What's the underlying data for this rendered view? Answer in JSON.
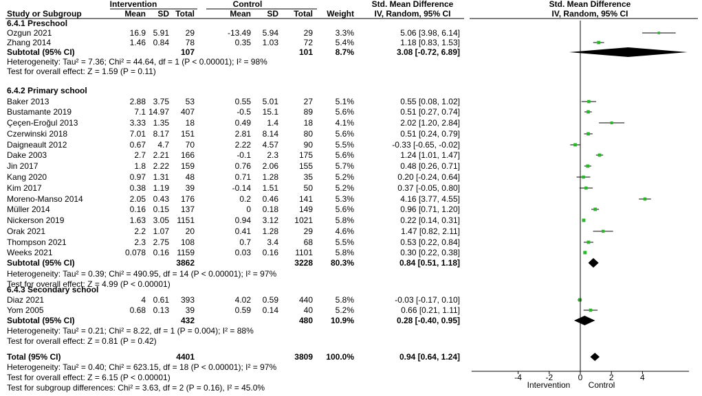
{
  "headers": {
    "study": "Study or Subgroup",
    "intervention": "Intervention",
    "control": "Control",
    "mean": "Mean",
    "sd": "SD",
    "total": "Total",
    "weight": "Weight",
    "smd": "Std. Mean Difference",
    "model": "IV, Random, 95% CI"
  },
  "plot": {
    "title": "Std. Mean Difference",
    "model": "IV, Random, 95% CI",
    "axis_ticks": [
      -4,
      -2,
      0,
      2,
      4
    ],
    "axis_tick_labels": [
      "-4",
      "-2",
      "0",
      "2",
      "4"
    ],
    "axis_range": [
      -7,
      7
    ],
    "left_label": "Intervention",
    "right_label": "Control",
    "square_color": "#2db52d",
    "diamond_color": "#000000"
  },
  "chart_data": {
    "type": "forest",
    "xlim": [
      -7,
      7
    ],
    "groups": [
      {
        "title": "6.4.1 Preschool",
        "studies": [
          {
            "study": "Ozgun 2021",
            "i_mean": "16.9",
            "i_sd": "5.91",
            "i_total": "29",
            "c_mean": "-13.49",
            "c_sd": "5.94",
            "c_total": "29",
            "weight": "3.3%",
            "ci_text": "5.06 [3.98, 6.14]",
            "est": 5.06,
            "lo": 3.98,
            "hi": 6.14
          },
          {
            "study": "Zhang 2014",
            "i_mean": "1.46",
            "i_sd": "0.84",
            "i_total": "78",
            "c_mean": "0.35",
            "c_sd": "1.03",
            "c_total": "72",
            "weight": "5.4%",
            "ci_text": "1.18 [0.83, 1.53]",
            "est": 1.18,
            "lo": 0.83,
            "hi": 1.53
          }
        ],
        "subtotal": {
          "label": "Subtotal (95% CI)",
          "i_total": "107",
          "c_total": "101",
          "weight": "8.7%",
          "ci_text": "3.08 [-0.72, 6.89]",
          "est": 3.08,
          "lo": -0.72,
          "hi": 6.89
        },
        "heterogeneity": "Heterogeneity: Tau² = 7.36; Chi² = 44.64, df = 1 (P < 0.00001); I² = 98%",
        "overall": "Test for overall effect: Z = 1.59 (P = 0.11)"
      },
      {
        "title": "6.4.2 Primary school",
        "studies": [
          {
            "study": "Baker 2013",
            "i_mean": "2.88",
            "i_sd": "3.75",
            "i_total": "53",
            "c_mean": "0.55",
            "c_sd": "5.01",
            "c_total": "27",
            "weight": "5.1%",
            "ci_text": "0.55 [0.08, 1.02]",
            "est": 0.55,
            "lo": 0.08,
            "hi": 1.02
          },
          {
            "study": "Bustamante 2019",
            "i_mean": "7.1",
            "i_sd": "14.97",
            "i_total": "407",
            "c_mean": "-0.5",
            "c_sd": "15.1",
            "c_total": "89",
            "weight": "5.6%",
            "ci_text": "0.51 [0.27, 0.74]",
            "est": 0.51,
            "lo": 0.27,
            "hi": 0.74
          },
          {
            "study": "Çeçen-Eroğul 2013",
            "i_mean": "3.33",
            "i_sd": "1.35",
            "i_total": "18",
            "c_mean": "0.49",
            "c_sd": "1.4",
            "c_total": "18",
            "weight": "4.1%",
            "ci_text": "2.02 [1.20, 2.84]",
            "est": 2.02,
            "lo": 1.2,
            "hi": 2.84
          },
          {
            "study": "Czerwinski 2018",
            "i_mean": "7.01",
            "i_sd": "8.17",
            "i_total": "151",
            "c_mean": "2.81",
            "c_sd": "8.14",
            "c_total": "80",
            "weight": "5.6%",
            "ci_text": "0.51 [0.24, 0.79]",
            "est": 0.51,
            "lo": 0.24,
            "hi": 0.79
          },
          {
            "study": "Daigneault 2012",
            "i_mean": "0.67",
            "i_sd": "4.7",
            "i_total": "70",
            "c_mean": "2.22",
            "c_sd": "4.57",
            "c_total": "90",
            "weight": "5.5%",
            "ci_text": "-0.33 [-0.65, -0.02]",
            "est": -0.33,
            "lo": -0.65,
            "hi": -0.02
          },
          {
            "study": "Dake 2003",
            "i_mean": "2.7",
            "i_sd": "2.21",
            "i_total": "166",
            "c_mean": "-0.1",
            "c_sd": "2.3",
            "c_total": "175",
            "weight": "5.6%",
            "ci_text": "1.24 [1.01, 1.47]",
            "est": 1.24,
            "lo": 1.01,
            "hi": 1.47
          },
          {
            "study": "Jin 2017",
            "i_mean": "1.8",
            "i_sd": "2.22",
            "i_total": "159",
            "c_mean": "0.76",
            "c_sd": "2.06",
            "c_total": "155",
            "weight": "5.7%",
            "ci_text": "0.48 [0.26, 0.71]",
            "est": 0.48,
            "lo": 0.26,
            "hi": 0.71
          },
          {
            "study": "Kang 2020",
            "i_mean": "0.97",
            "i_sd": "1.31",
            "i_total": "48",
            "c_mean": "0.71",
            "c_sd": "1.28",
            "c_total": "35",
            "weight": "5.2%",
            "ci_text": "0.20 [-0.24, 0.64]",
            "est": 0.2,
            "lo": -0.24,
            "hi": 0.64
          },
          {
            "study": "Kim 2017",
            "i_mean": "0.38",
            "i_sd": "1.19",
            "i_total": "39",
            "c_mean": "-0.14",
            "c_sd": "1.51",
            "c_total": "50",
            "weight": "5.2%",
            "ci_text": "0.37 [-0.05, 0.80]",
            "est": 0.37,
            "lo": -0.05,
            "hi": 0.8
          },
          {
            "study": "Moreno-Manso 2014",
            "i_mean": "2.05",
            "i_sd": "0.43",
            "i_total": "176",
            "c_mean": "0.2",
            "c_sd": "0.46",
            "c_total": "141",
            "weight": "5.3%",
            "ci_text": "4.16 [3.77, 4.55]",
            "est": 4.16,
            "lo": 3.77,
            "hi": 4.55
          },
          {
            "study": "Müller 2014",
            "i_mean": "0.16",
            "i_sd": "0.15",
            "i_total": "137",
            "c_mean": "0",
            "c_sd": "0.18",
            "c_total": "149",
            "weight": "5.6%",
            "ci_text": "0.96 [0.71, 1.20]",
            "est": 0.96,
            "lo": 0.71,
            "hi": 1.2
          },
          {
            "study": "Nickerson 2019",
            "i_mean": "1.63",
            "i_sd": "3.05",
            "i_total": "1151",
            "c_mean": "0.94",
            "c_sd": "3.12",
            "c_total": "1021",
            "weight": "5.8%",
            "ci_text": "0.22 [0.14, 0.31]",
            "est": 0.22,
            "lo": 0.14,
            "hi": 0.31
          },
          {
            "study": "Orak 2021",
            "i_mean": "2.2",
            "i_sd": "1.07",
            "i_total": "20",
            "c_mean": "0.41",
            "c_sd": "1.28",
            "c_total": "29",
            "weight": "4.6%",
            "ci_text": "1.47 [0.82, 2.11]",
            "est": 1.47,
            "lo": 0.82,
            "hi": 2.11
          },
          {
            "study": "Thompson 2021",
            "i_mean": "2.3",
            "i_sd": "2.75",
            "i_total": "108",
            "c_mean": "0.7",
            "c_sd": "3.4",
            "c_total": "68",
            "weight": "5.5%",
            "ci_text": "0.53 [0.22, 0.84]",
            "est": 0.53,
            "lo": 0.22,
            "hi": 0.84
          },
          {
            "study": "Weeks 2021",
            "i_mean": "0.078",
            "i_sd": "0.16",
            "i_total": "1159",
            "c_mean": "0.03",
            "c_sd": "0.16",
            "c_total": "1101",
            "weight": "5.8%",
            "ci_text": "0.30 [0.22, 0.38]",
            "est": 0.3,
            "lo": 0.22,
            "hi": 0.38
          }
        ],
        "subtotal": {
          "label": "Subtotal (95% CI)",
          "i_total": "3862",
          "c_total": "3228",
          "weight": "80.3%",
          "ci_text": "0.84 [0.51, 1.18]",
          "est": 0.84,
          "lo": 0.51,
          "hi": 1.18
        },
        "heterogeneity": "Heterogeneity: Tau² = 0.39; Chi² = 490.95, df = 14 (P < 0.00001); I² = 97%",
        "overall": "Test for overall effect: Z = 4.99 (P < 0.00001)"
      },
      {
        "title": "6.4.3 Secondary school",
        "studies": [
          {
            "study": "Diaz 2021",
            "i_mean": "4",
            "i_sd": "0.61",
            "i_total": "393",
            "c_mean": "4.02",
            "c_sd": "0.59",
            "c_total": "440",
            "weight": "5.8%",
            "ci_text": "-0.03 [-0.17, 0.10]",
            "est": -0.03,
            "lo": -0.17,
            "hi": 0.1
          },
          {
            "study": "Yom 2005",
            "i_mean": "0.68",
            "i_sd": "0.13",
            "i_total": "39",
            "c_mean": "0.59",
            "c_sd": "0.14",
            "c_total": "40",
            "weight": "5.2%",
            "ci_text": "0.66 [0.21, 1.11]",
            "est": 0.66,
            "lo": 0.21,
            "hi": 1.11
          }
        ],
        "subtotal": {
          "label": "Subtotal (95% CI)",
          "i_total": "432",
          "c_total": "480",
          "weight": "10.9%",
          "ci_text": "0.28 [-0.40, 0.95]",
          "est": 0.28,
          "lo": -0.4,
          "hi": 0.95
        },
        "heterogeneity": "Heterogeneity: Tau² = 0.21; Chi² = 8.22, df = 1 (P = 0.004); I² = 88%",
        "overall": "Test for overall effect: Z = 0.81 (P = 0.42)"
      }
    ],
    "total": {
      "label": "Total (95% CI)",
      "i_total": "4401",
      "c_total": "3809",
      "weight": "100.0%",
      "ci_text": "0.94 [0.64, 1.24]",
      "est": 0.94,
      "lo": 0.64,
      "hi": 1.24,
      "heterogeneity": "Heterogeneity: Tau² = 0.40; Chi² = 623.15, df = 18 (P < 0.00001); I² = 97%",
      "overall": "Test for overall effect: Z = 6.15 (P < 0.00001)",
      "subgroup": "Test for subgroup differences: Chi² = 3.63, df = 2 (P = 0.16), I² = 45.0%"
    }
  }
}
